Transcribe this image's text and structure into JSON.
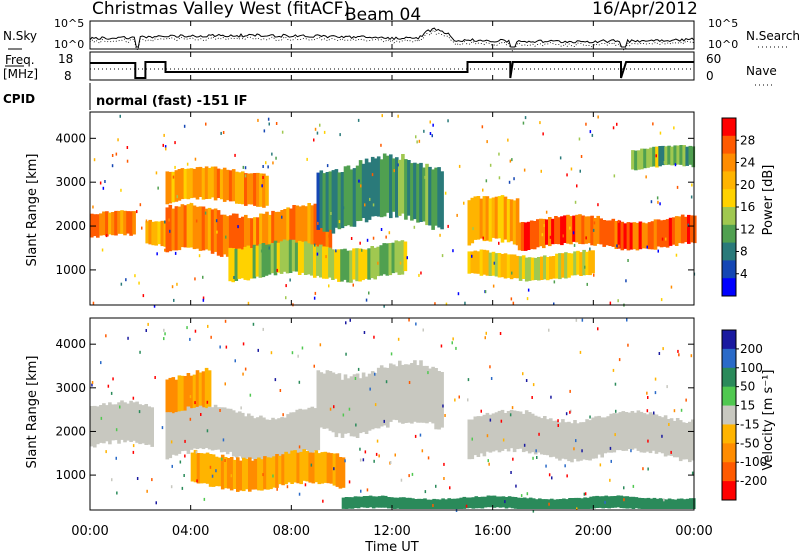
{
  "header": {
    "station": "Christmas Valley West (fitACF)",
    "beam": "Beam 04",
    "date": "16/Apr/2012"
  },
  "summary_panels": {
    "nsky_label": "N.Sky",
    "nsearch_label": "N.Search",
    "freq_label_1": "Freq.",
    "freq_label_2": "[MHz]",
    "nave_label": "Nave",
    "left_ticks_top": [
      "10^5",
      "10^0"
    ],
    "right_ticks_top": [
      "10^5",
      "10^0"
    ],
    "left_ticks_freq": [
      "18",
      "8"
    ],
    "right_ticks_nave": [
      "60",
      "0"
    ],
    "cpid_label": "CPID",
    "cpid_text": "normal (fast) -151 IF"
  },
  "x_axis": {
    "label": "Time UT",
    "ticks": [
      "00:00",
      "04:00",
      "08:00",
      "12:00",
      "16:00",
      "20:00",
      "00:00"
    ]
  },
  "power_colorbar": {
    "label": "Power [dB]",
    "ticks": [
      "28",
      "24",
      "20",
      "16",
      "12",
      "8",
      "4"
    ],
    "colors": [
      "#ff0000",
      "#ff5a00",
      "#ff8c00",
      "#ffb400",
      "#ffd200",
      "#a0c850",
      "#50a050",
      "#2a7a7a",
      "#1446b4",
      "#0000ff"
    ]
  },
  "velocity_colorbar": {
    "label": "Velocity [m s⁻¹]",
    "ticks": [
      "200",
      "100",
      "50",
      "15",
      "-15",
      "-50",
      "-100",
      "-200"
    ],
    "colors": [
      "#1a1aa0",
      "#2a6ac8",
      "#2a8a5a",
      "#50c850",
      "#c8c8c0",
      "#ffb400",
      "#ff8c00",
      "#ff5a00",
      "#ff0000"
    ]
  },
  "chart_data": [
    {
      "type": "line",
      "title": "",
      "series": [
        {
          "name": "N.Sky"
        },
        {
          "name": "N.Search"
        }
      ]
    },
    {
      "type": "line",
      "series": [
        {
          "name": "Freq."
        },
        {
          "name": "Nave"
        }
      ]
    },
    {
      "type": "heatmap",
      "quantity": "Power",
      "xlabel": "Time UT",
      "ylabel": "Slant Range [km]",
      "y_ticks": [
        "1000",
        "2000",
        "3000",
        "4000"
      ],
      "ylim": [
        200,
        4600
      ],
      "xlim": [
        0,
        24
      ],
      "colorbar_label": "Power [dB]",
      "bands": [
        {
          "t": [
            0,
            1.8
          ],
          "range_km": [
            1700,
            2300
          ],
          "value": 24
        },
        {
          "t": [
            2.2,
            3.0
          ],
          "range_km": [
            1600,
            2200
          ],
          "value": 22
        },
        {
          "t": [
            3.0,
            7.0
          ],
          "range_km": [
            2500,
            3300
          ],
          "value": 22
        },
        {
          "t": [
            3.0,
            9.5
          ],
          "range_km": [
            1300,
            2400
          ],
          "value": 24
        },
        {
          "t": [
            5.5,
            12.5
          ],
          "range_km": [
            800,
            1600
          ],
          "value": 14
        },
        {
          "t": [
            9.0,
            14.0
          ],
          "range_km": [
            2000,
            3500
          ],
          "value": 8
        },
        {
          "t": [
            15.0,
            17.0
          ],
          "range_km": [
            1500,
            2600
          ],
          "value": 20
        },
        {
          "t": [
            15.0,
            20.0
          ],
          "range_km": [
            800,
            1400
          ],
          "value": 18
        },
        {
          "t": [
            17.0,
            24.0
          ],
          "range_km": [
            1500,
            2200
          ],
          "value": 26
        },
        {
          "t": [
            21.5,
            24.0
          ],
          "range_km": [
            3300,
            3800
          ],
          "value": 12
        }
      ]
    },
    {
      "type": "heatmap",
      "quantity": "Velocity",
      "xlabel": "Time UT",
      "ylabel": "Slant Range [km]",
      "y_ticks": [
        "1000",
        "2000",
        "3000",
        "4000"
      ],
      "ylim": [
        200,
        4600
      ],
      "xlim": [
        0,
        24
      ],
      "colorbar_label": "Velocity [m s⁻¹]",
      "bands": [
        {
          "t": [
            0,
            2.5
          ],
          "range_km": [
            1600,
            2600
          ],
          "value": 0
        },
        {
          "t": [
            3.0,
            4.8
          ],
          "range_km": [
            2300,
            3400
          ],
          "value": -50
        },
        {
          "t": [
            3.0,
            9.0
          ],
          "range_km": [
            1400,
            2500
          ],
          "value": 0
        },
        {
          "t": [
            4.0,
            10.0
          ],
          "range_km": [
            700,
            1500
          ],
          "value": -50
        },
        {
          "t": [
            9.0,
            14.0
          ],
          "range_km": [
            2000,
            3500
          ],
          "value": 0
        },
        {
          "t": [
            15.0,
            24.0
          ],
          "range_km": [
            1400,
            2400
          ],
          "value": 0
        },
        {
          "t": [
            10.0,
            24.0
          ],
          "range_km": [
            200,
            500
          ],
          "value": 50
        }
      ]
    }
  ]
}
